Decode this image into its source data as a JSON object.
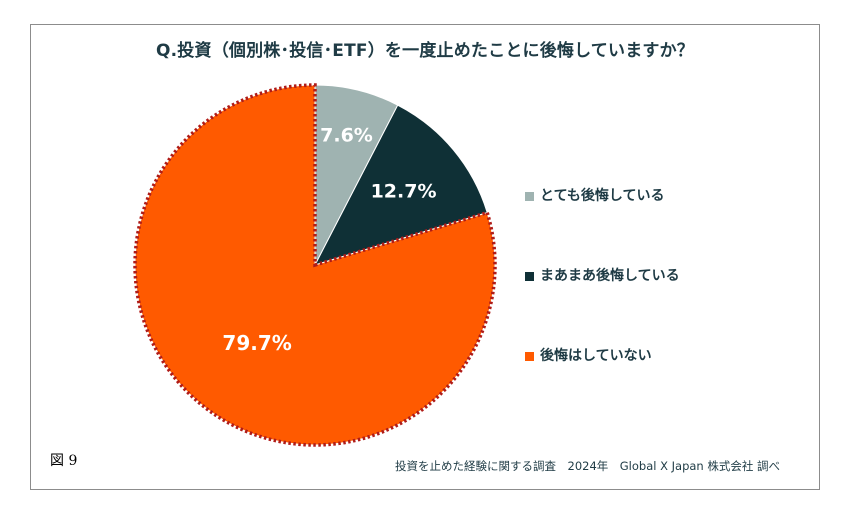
{
  "title": "Q.投資（個別株･投信･ETF）を一度止めたことに後悔していますか？",
  "figure_label": "図 9",
  "source": "投資を止めた経験に関する調査　2024年　Global X Japan 株式会社 調べ",
  "colors": {
    "text": "#1f3b45",
    "slice_1": "#9fb3b1",
    "slice_2": "#0f3036",
    "slice_3": "#ff5a00",
    "dotted_border": "#b01c18"
  },
  "chart_data": {
    "type": "pie",
    "title": "Q.投資（個別株･投信･ETF）を一度止めたことに後悔していますか？",
    "start_angle": "12 o'clock",
    "direction": "clockwise",
    "legend_position": "right",
    "slices": [
      {
        "label": "とても後悔している",
        "value": 7.6,
        "display": "7.6%",
        "color": "#9fb3b1",
        "label_color": "#ffffff"
      },
      {
        "label": "まあまあ後悔している",
        "value": 12.7,
        "display": "12.7%",
        "color": "#0f3036",
        "label_color": "#ffffff"
      },
      {
        "label": "後悔はしていない",
        "value": 79.7,
        "display": "79.7%",
        "color": "#ff5a00",
        "label_color": "#ffffff"
      }
    ]
  }
}
